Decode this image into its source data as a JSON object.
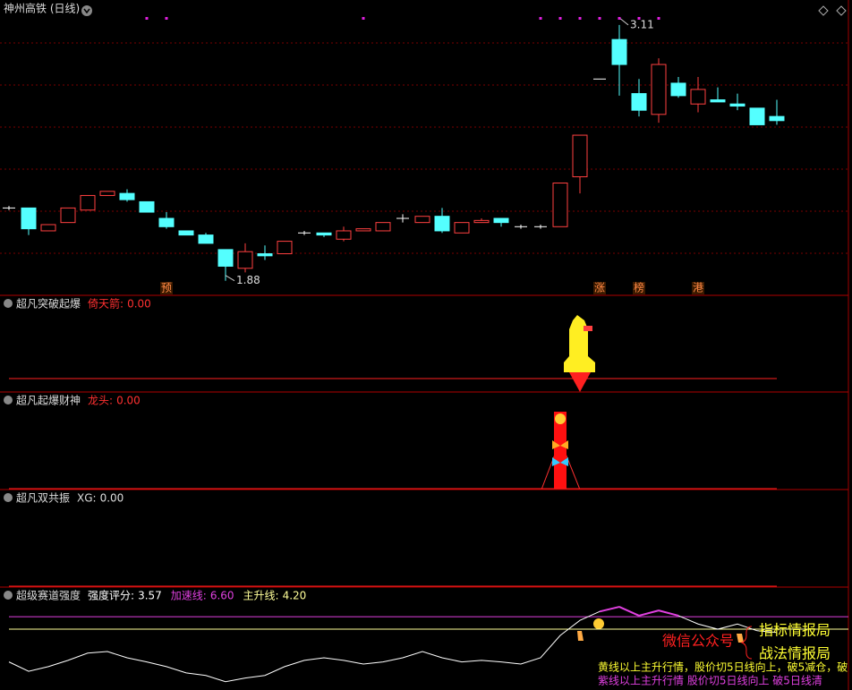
{
  "chart_data": [
    {
      "type": "candlestick",
      "title": "神州高铁 (日线)",
      "ylim": [
        1.81,
        3.23
      ],
      "up_color": "#ff4040",
      "down_color": "#54ffff",
      "flat_color": "#ffffff",
      "candles": [
        {
          "open": 2.23,
          "high": 2.24,
          "low": 2.22,
          "close": 2.23
        },
        {
          "open": 2.23,
          "high": 2.23,
          "low": 2.1,
          "close": 2.13
        },
        {
          "open": 2.12,
          "high": 2.15,
          "low": 2.12,
          "close": 2.15
        },
        {
          "open": 2.16,
          "high": 2.23,
          "low": 2.16,
          "close": 2.23
        },
        {
          "open": 2.22,
          "high": 2.29,
          "low": 2.22,
          "close": 2.29
        },
        {
          "open": 2.29,
          "high": 2.31,
          "low": 2.29,
          "close": 2.31
        },
        {
          "open": 2.3,
          "high": 2.32,
          "low": 2.26,
          "close": 2.27
        },
        {
          "open": 2.26,
          "high": 2.26,
          "low": 2.21,
          "close": 2.21
        },
        {
          "open": 2.18,
          "high": 2.21,
          "low": 2.13,
          "close": 2.14
        },
        {
          "open": 2.12,
          "high": 2.12,
          "low": 2.1,
          "close": 2.1
        },
        {
          "open": 2.1,
          "high": 2.11,
          "low": 2.06,
          "close": 2.06
        },
        {
          "open": 2.03,
          "high": 2.03,
          "low": 1.88,
          "close": 1.95
        },
        {
          "open": 1.94,
          "high": 2.06,
          "low": 1.92,
          "close": 2.02
        },
        {
          "open": 2.01,
          "high": 2.05,
          "low": 1.98,
          "close": 2.0
        },
        {
          "open": 2.01,
          "high": 2.07,
          "low": 2.01,
          "close": 2.07
        },
        {
          "open": 2.11,
          "high": 2.12,
          "low": 2.1,
          "close": 2.11
        },
        {
          "open": 2.11,
          "high": 2.11,
          "low": 2.09,
          "close": 2.1
        },
        {
          "open": 2.08,
          "high": 2.14,
          "low": 2.07,
          "close": 2.12
        },
        {
          "open": 2.12,
          "high": 2.13,
          "low": 2.12,
          "close": 2.13
        },
        {
          "open": 2.12,
          "high": 2.16,
          "low": 2.12,
          "close": 2.16
        },
        {
          "open": 2.18,
          "high": 2.2,
          "low": 2.16,
          "close": 2.18
        },
        {
          "open": 2.16,
          "high": 2.19,
          "low": 2.16,
          "close": 2.19
        },
        {
          "open": 2.19,
          "high": 2.23,
          "low": 2.11,
          "close": 2.12
        },
        {
          "open": 2.11,
          "high": 2.16,
          "low": 2.11,
          "close": 2.16
        },
        {
          "open": 2.16,
          "high": 2.18,
          "low": 2.16,
          "close": 2.17
        },
        {
          "open": 2.18,
          "high": 2.18,
          "low": 2.14,
          "close": 2.16
        },
        {
          "open": 2.14,
          "high": 2.15,
          "low": 2.13,
          "close": 2.14
        },
        {
          "open": 2.14,
          "high": 2.15,
          "low": 2.13,
          "close": 2.14
        },
        {
          "open": 2.14,
          "high": 2.35,
          "low": 2.14,
          "close": 2.35
        },
        {
          "open": 2.38,
          "high": 2.58,
          "low": 2.3,
          "close": 2.58
        },
        {
          "open": 2.85,
          "high": 2.85,
          "low": 2.85,
          "close": 2.85
        },
        {
          "open": 3.04,
          "high": 3.11,
          "low": 2.77,
          "close": 2.92
        },
        {
          "open": 2.78,
          "high": 2.85,
          "low": 2.67,
          "close": 2.7
        },
        {
          "open": 2.68,
          "high": 2.95,
          "low": 2.64,
          "close": 2.92
        },
        {
          "open": 2.83,
          "high": 2.86,
          "low": 2.76,
          "close": 2.77
        },
        {
          "open": 2.73,
          "high": 2.86,
          "low": 2.69,
          "close": 2.8
        },
        {
          "open": 2.75,
          "high": 2.81,
          "low": 2.74,
          "close": 2.74
        },
        {
          "open": 2.73,
          "high": 2.78,
          "low": 2.7,
          "close": 2.72
        },
        {
          "open": 2.71,
          "high": 2.71,
          "low": 2.63,
          "close": 2.63
        },
        {
          "open": 2.67,
          "high": 2.75,
          "low": 2.63,
          "close": 2.65
        }
      ],
      "high_label_candle": 31,
      "low_label_candle": 11,
      "signal_dot_candles": [
        7,
        8,
        18,
        27,
        28,
        29,
        30,
        31,
        32,
        33
      ],
      "signal_dot_color": "#e020e0",
      "markers": [
        {
          "candle": 8,
          "label": "预"
        },
        {
          "candle": 30,
          "label": "涨"
        },
        {
          "candle": 32,
          "label": "榜"
        },
        {
          "candle": 35,
          "label": "港"
        }
      ]
    },
    {
      "type": "signal",
      "title": "超凡突破起爆",
      "readouts": [
        {
          "name": "倚天箭:",
          "value": 0,
          "value_label": "0.00",
          "color": "#ff3030"
        }
      ]
    },
    {
      "type": "signal",
      "title": "超凡起爆财神",
      "readouts": [
        {
          "name": "龙头:",
          "value": 0,
          "value_label": "0.00",
          "color": "#ff3030"
        }
      ]
    },
    {
      "type": "signal",
      "title": "超凡双共振",
      "readouts": [
        {
          "name": "XG:",
          "value": 0,
          "value_label": "0.00",
          "color": "#dddddd"
        }
      ]
    },
    {
      "type": "line",
      "title": "超级赛道强度",
      "ylim": [
        -7.5,
        12.3
      ],
      "series": [
        {
          "name": "强度评分:",
          "color": "#ffffff",
          "values": [
            -2.1,
            -3.9,
            -3.0,
            -1.8,
            -0.4,
            -0.1,
            -1.3,
            -2.1,
            -3.0,
            -4.2,
            -4.7,
            -5.9,
            -5.2,
            -4.7,
            -3.0,
            -1.8,
            -1.3,
            -1.8,
            -2.5,
            -2.1,
            -1.3,
            -0.1,
            -1.3,
            -2.1,
            -1.8,
            -2.1,
            -2.5,
            -1.3,
            3.0,
            5.9,
            7.6,
            8.5,
            6.8,
            7.8,
            6.8,
            5.2,
            4.2,
            5.2,
            3.9,
            3.57
          ]
        },
        {
          "name": "加速线:",
          "color": "#e040e0",
          "value": 6.6,
          "value_label": "6.60"
        },
        {
          "name": "主升线:",
          "color": "#ffff99",
          "value": 4.2,
          "value_label": "4.20"
        }
      ]
    }
  ],
  "overlay": {
    "wechat": "微信公众号",
    "brand1": "指标情报局",
    "brand2": "战法情报局",
    "note1": "黄线以上主升行情，股价切5日线向上，破5减仓，破",
    "note2": "紫线以上主升行情 股价切5日线向上 破5日线清"
  }
}
